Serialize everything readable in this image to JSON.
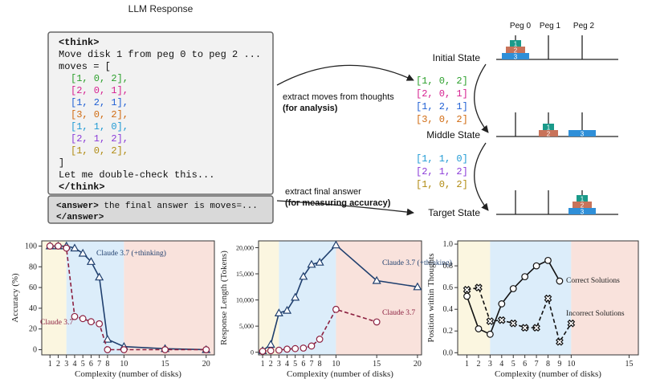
{
  "response": {
    "title": "LLM Response",
    "lines": [
      {
        "text": "<think>",
        "color": "#111111",
        "bold": true,
        "indent": false
      },
      {
        "text": "Move disk 1 from peg 0 to peg 2 ...",
        "color": "#111111",
        "bold": false,
        "indent": false
      },
      {
        "text": "moves = [",
        "color": "#111111",
        "bold": false,
        "indent": false
      },
      {
        "text": "[1, 0, 2],",
        "color": "#2ca02c",
        "bold": false,
        "indent": true
      },
      {
        "text": "[2, 0, 1],",
        "color": "#d62090",
        "bold": false,
        "indent": true
      },
      {
        "text": "[1, 2, 1],",
        "color": "#1f5fd4",
        "bold": false,
        "indent": true
      },
      {
        "text": "[3, 0, 2],",
        "color": "#d06a10",
        "bold": false,
        "indent": true
      },
      {
        "text": "[1, 1, 0],",
        "color": "#1f9ad4",
        "bold": false,
        "indent": true
      },
      {
        "text": "[2, 1, 2],",
        "color": "#8a3ad8",
        "bold": false,
        "indent": true
      },
      {
        "text": "[1, 0, 2],",
        "color": "#b08a10",
        "bold": false,
        "indent": true
      },
      {
        "text": "]",
        "color": "#111111",
        "bold": false,
        "indent": false
      },
      {
        "text": "Let me double-check this...",
        "color": "#111111",
        "bold": false,
        "indent": false
      },
      {
        "text": "</think>",
        "color": "#111111",
        "bold": true,
        "indent": false
      }
    ],
    "answer_open": "<answer>",
    "answer_text": " the final answer is moves=...",
    "answer_close": "</answer>"
  },
  "arrows": [
    {
      "label": "extract moves  from thoughts",
      "note": "(for analysis)"
    },
    {
      "label": "extract final answer",
      "note": "(for measuring accuracy)"
    }
  ],
  "extracted": [
    [
      {
        "text": "[1, 0, 2]",
        "color": "#2ca02c"
      },
      {
        "text": "[2, 0, 1]",
        "color": "#d62090"
      },
      {
        "text": "[1, 2, 1]",
        "color": "#1f5fd4"
      },
      {
        "text": "[3, 0, 2]",
        "color": "#d06a10"
      }
    ],
    [
      {
        "text": "[1, 1, 0]",
        "color": "#1f9ad4"
      },
      {
        "text": "[2, 1, 2]",
        "color": "#8a3ad8"
      },
      {
        "text": "[1, 0, 2]",
        "color": "#b08a10"
      }
    ]
  ],
  "states": [
    "Initial State",
    "Middle State",
    "Target State"
  ],
  "pegs": [
    "Peg 0",
    "Peg 1",
    "Peg 2"
  ],
  "disks": [
    {
      "label": "1",
      "color": "#1a9a8a"
    },
    {
      "label": "2",
      "color": "#c8735a"
    },
    {
      "label": "3",
      "color": "#2f8fd8"
    }
  ],
  "chart_data": [
    {
      "type": "line",
      "x_label": "Complexity (number of disks)",
      "y_label": "Accuracy (%)",
      "x": [
        1,
        2,
        3,
        4,
        5,
        6,
        7,
        8,
        10,
        15,
        20
      ],
      "xlim": [
        0,
        21
      ],
      "xticks": [
        1,
        2,
        3,
        4,
        5,
        6,
        7,
        8,
        10,
        15,
        20
      ],
      "ylim": [
        -5,
        105
      ],
      "yticks": [
        0,
        20,
        40,
        60,
        80,
        100
      ],
      "regions": [
        {
          "from": 0,
          "to": 3,
          "color": "#fbf6e0"
        },
        {
          "from": 3,
          "to": 10,
          "color": "#dcedfa"
        },
        {
          "from": 10,
          "to": 21,
          "color": "#f9e2dc"
        }
      ],
      "series": [
        {
          "name": "Claude 3.7 (+thinking)",
          "color": "#1f3f6e",
          "marker": "triangle",
          "dashed": false,
          "values": [
            100,
            100,
            100,
            98,
            93,
            85,
            70,
            10,
            3,
            1,
            0
          ]
        },
        {
          "name": "Claude 3.7",
          "color": "#8c2040",
          "marker": "circle",
          "dashed": true,
          "values": [
            100,
            100,
            98,
            32,
            30,
            27,
            25,
            0,
            0,
            0,
            0
          ]
        }
      ]
    },
    {
      "type": "line",
      "x_label": "Complexity (number of disks)",
      "y_label": "Response Length (Tokens)",
      "x": [
        1,
        2,
        3,
        4,
        5,
        6,
        7,
        8,
        10,
        15,
        20
      ],
      "xlim": [
        0.5,
        20.5
      ],
      "xticks": [
        1,
        2,
        3,
        4,
        5,
        6,
        7,
        8,
        10,
        15,
        20
      ],
      "ylim": [
        -500,
        21300
      ],
      "yticks": [
        0,
        {
          "value": 5000,
          "label": "5,000"
        },
        {
          "value": 10000,
          "label": "10,000"
        },
        {
          "value": 15000,
          "label": "15,000"
        },
        {
          "value": 20000,
          "label": "20,000"
        }
      ],
      "regions": [
        {
          "from": 0.5,
          "to": 3,
          "color": "#fbf6e0"
        },
        {
          "from": 3,
          "to": 10,
          "color": "#dcedfa"
        },
        {
          "from": 10,
          "to": 20.5,
          "color": "#f9e2dc"
        }
      ],
      "series": [
        {
          "name": "Claude 3.7 (+thinking)",
          "color": "#1f3f6e",
          "marker": "triangle",
          "dashed": false,
          "values": [
            300,
            1500,
            7500,
            8000,
            10500,
            14500,
            16800,
            17200,
            20500,
            13700,
            12500
          ]
        },
        {
          "name": "Claude 3.7",
          "color": "#8c2040",
          "marker": "circle",
          "dashed": true,
          "values": [
            200,
            300,
            400,
            600,
            700,
            800,
            1200,
            2500,
            8200,
            5800,
            null
          ]
        }
      ]
    },
    {
      "type": "line",
      "x_label": "Complexity (number of disks)",
      "y_label": "Position within Thoughts",
      "x": [
        1,
        2,
        3,
        4,
        5,
        6,
        7,
        8,
        9,
        10
      ],
      "xlim": [
        0.2,
        15.8
      ],
      "xticks": [
        1,
        2,
        3,
        4,
        5,
        6,
        7,
        8,
        9,
        10,
        15
      ],
      "ylim": [
        -0.02,
        1.03
      ],
      "yticks": [
        {
          "value": 0,
          "label": "0.0"
        },
        0.2,
        0.4,
        0.6,
        0.8,
        {
          "value": 1,
          "label": "1.0"
        }
      ],
      "regions": [
        {
          "from": 0.2,
          "to": 3,
          "color": "#fbf6e0"
        },
        {
          "from": 3,
          "to": 10,
          "color": "#dcedfa"
        },
        {
          "from": 10,
          "to": 15.8,
          "color": "#f9e2dc"
        }
      ],
      "series": [
        {
          "name": "Correct Solutions",
          "color": "#111111",
          "marker": "circle",
          "dashed": false,
          "values": [
            0.52,
            0.22,
            0.17,
            0.45,
            0.59,
            0.7,
            0.8,
            0.85,
            0.66,
            null
          ]
        },
        {
          "name": "Incorrect Solutions",
          "color": "#111111",
          "marker": "cross",
          "dashed": true,
          "values": [
            0.58,
            0.6,
            0.29,
            0.3,
            0.27,
            0.23,
            0.23,
            0.5,
            0.1,
            0.27
          ]
        }
      ]
    }
  ]
}
